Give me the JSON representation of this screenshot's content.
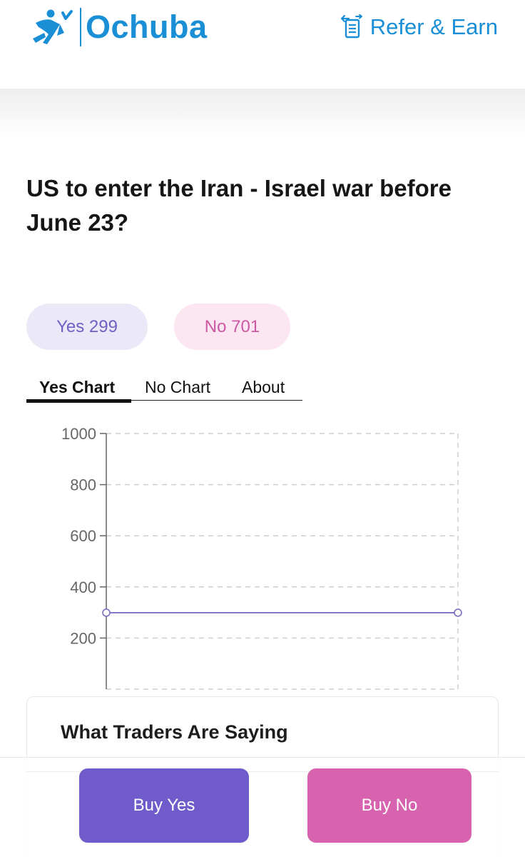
{
  "header": {
    "brand": "Ochuba",
    "refer_label": "Refer & Earn"
  },
  "market": {
    "question": "US to enter the Iran - Israel war before June 23?"
  },
  "outcomes": {
    "yes_label": "Yes 299",
    "no_label": "No 701"
  },
  "tabs": [
    {
      "label": "Yes Chart",
      "active": true
    },
    {
      "label": "No Chart",
      "active": false
    },
    {
      "label": "About",
      "active": false
    }
  ],
  "chart_data": {
    "type": "line",
    "ylim": [
      0,
      1000
    ],
    "yticks": [
      1000,
      800,
      600,
      400,
      200
    ],
    "grid": true,
    "series": [
      {
        "values": [
          299,
          299
        ],
        "color": "#7a6fc0"
      }
    ]
  },
  "traders": {
    "title": "What Traders Are Saying"
  },
  "actions": {
    "buy_yes": "Buy Yes",
    "buy_no": "Buy No"
  },
  "colors": {
    "brand": "#1a8fd6",
    "yes": "#6f5bc9",
    "no": "#d763ae"
  }
}
